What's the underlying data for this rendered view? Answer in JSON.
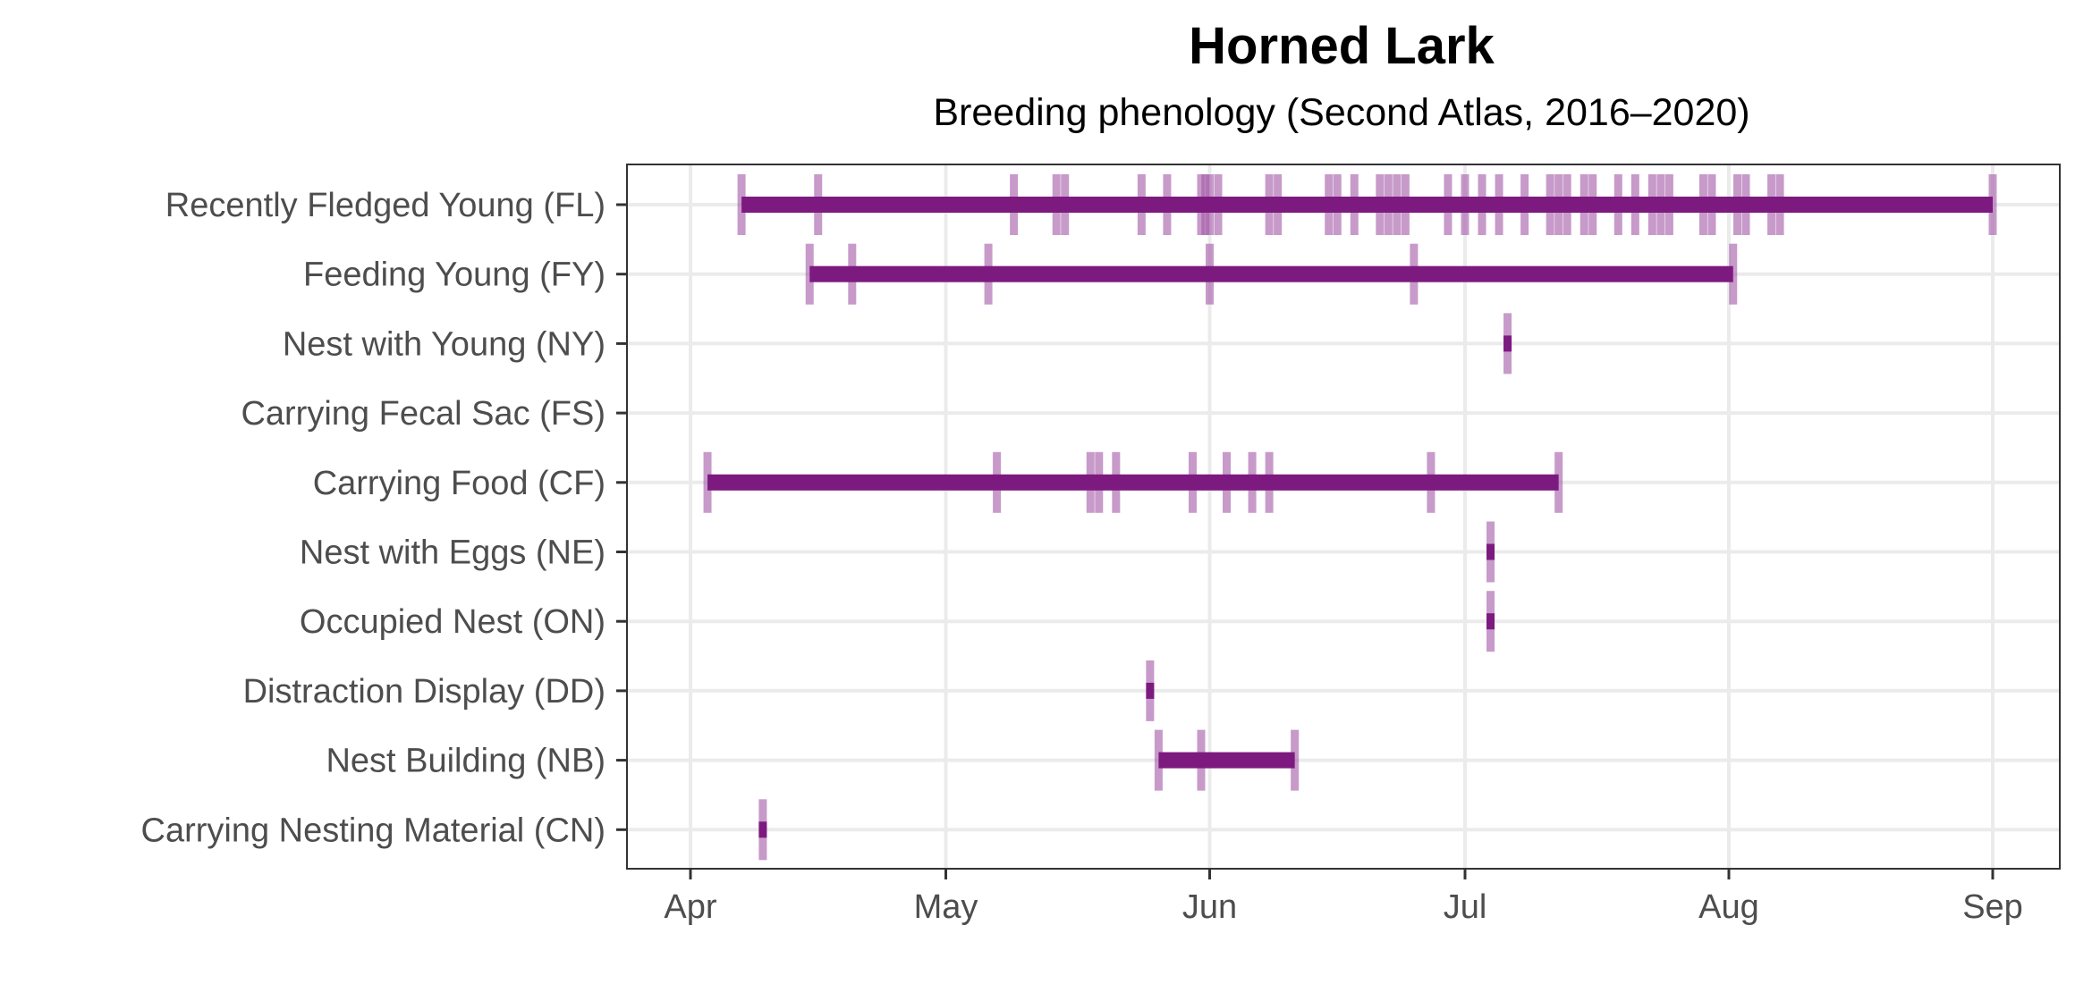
{
  "chart_data": {
    "type": "timeline",
    "title": "Horned Lark",
    "subtitle": "Breeding phenology (Second Atlas, 2016–2020)",
    "xlabel": "",
    "ylabel": "",
    "x_ticks": [
      {
        "label": "Apr",
        "day": 0
      },
      {
        "label": "May",
        "day": 30
      },
      {
        "label": "Jun",
        "day": 61
      },
      {
        "label": "Jul",
        "day": 91
      },
      {
        "label": "Aug",
        "day": 122
      },
      {
        "label": "Sep",
        "day": 153
      }
    ],
    "xlim": [
      -7.5,
      160.5
    ],
    "colors": {
      "bar": "#7d1a7f",
      "obs": "#a45ca9"
    },
    "categories": [
      {
        "label": "Recently Fledged Young (FL)",
        "range": [
          6,
          153
        ],
        "observations": [
          6,
          15,
          38,
          43,
          44,
          53,
          56,
          60,
          60.5,
          61,
          62,
          68,
          69,
          75,
          76,
          78,
          81,
          82,
          83,
          84,
          89,
          91,
          93,
          95,
          98,
          101,
          102,
          103,
          105,
          106,
          109,
          111,
          113,
          114,
          115,
          119,
          120,
          123,
          124,
          127,
          128,
          153
        ]
      },
      {
        "label": "Feeding Young (FY)",
        "range": [
          14,
          122.5
        ],
        "observations": [
          14,
          19,
          35,
          61,
          85,
          122.5
        ]
      },
      {
        "label": "Nest with Young (NY)",
        "range": null,
        "observations": [
          96
        ]
      },
      {
        "label": "Carrying Fecal Sac (FS)",
        "range": null,
        "observations": []
      },
      {
        "label": "Carrying Food (CF)",
        "range": [
          2,
          102
        ],
        "observations": [
          2,
          36,
          47,
          48,
          50,
          59,
          63,
          66,
          68,
          87,
          102
        ]
      },
      {
        "label": "Nest with Eggs (NE)",
        "range": null,
        "observations": [
          94
        ]
      },
      {
        "label": "Occupied Nest (ON)",
        "range": null,
        "observations": [
          94
        ]
      },
      {
        "label": "Distraction Display (DD)",
        "range": null,
        "observations": [
          54
        ]
      },
      {
        "label": "Nest Building (NB)",
        "range": [
          55,
          71
        ],
        "observations": [
          55,
          60,
          71
        ]
      },
      {
        "label": "Carrying Nesting Material (CN)",
        "range": null,
        "observations": [
          8.5
        ]
      }
    ]
  }
}
